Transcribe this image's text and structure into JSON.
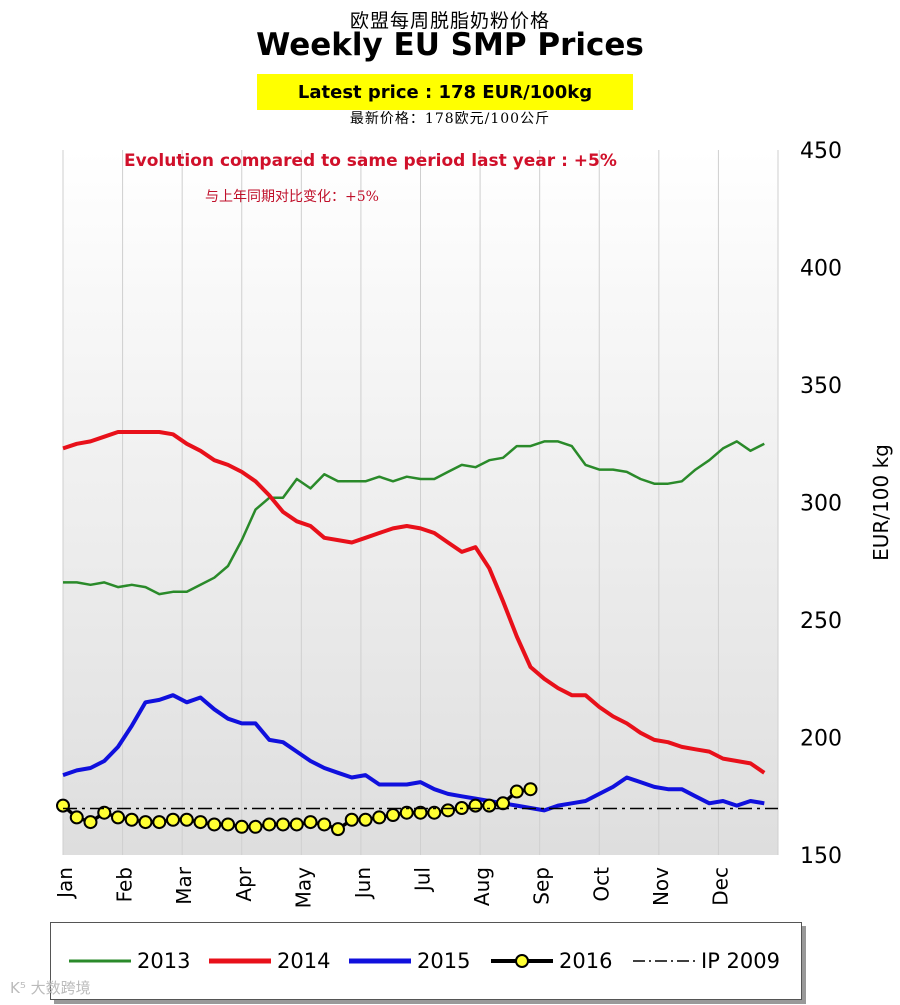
{
  "header": {
    "title_cn": "欧盟每周脱脂奶粉价格",
    "title_en": "Weekly EU SMP Prices",
    "latest_price_en": "Latest price :  178 EUR/100kg",
    "latest_price_cn": "最新价格：178欧元/100公斤",
    "evolution_en": "Evolution compared to same period last year : +5%",
    "evolution_cn": "与上年同期对比变化：+5%"
  },
  "watermark": "K⁵ 大数跨境",
  "colors": {
    "s2013": "#2a8a2a",
    "s2014": "#e8101a",
    "s2015": "#1010dd",
    "s2016_fill": "#ffff33",
    "s2016_line": "#000000",
    "ip2009": "#000000",
    "grid": "#cfcfcf",
    "plot_top": "#ffffff",
    "plot_bottom": "#dedede"
  },
  "chart_data": {
    "type": "line",
    "ylabel": "EUR/100 kg",
    "ylim": [
      150,
      450
    ],
    "yticks": [
      150,
      200,
      250,
      300,
      350,
      400,
      450
    ],
    "y_axis_side": "right",
    "xlim": [
      0,
      52
    ],
    "months": [
      "Jan",
      "Feb",
      "Mar",
      "Apr",
      "May",
      "Jun",
      "Jul",
      "Aug",
      "Sep",
      "Oct",
      "Nov",
      "Dec"
    ],
    "x_unit": "week",
    "grid": "vertical month lines",
    "legend_position": "bottom",
    "series": [
      {
        "name": "2013",
        "key": "s2013",
        "x": [
          0,
          1,
          2,
          3,
          4,
          5,
          6,
          7,
          8,
          9,
          10,
          11,
          12,
          13,
          14,
          15,
          16,
          17,
          18,
          19,
          20,
          21,
          22,
          23,
          24,
          25,
          26,
          27,
          28,
          29,
          30,
          31,
          32,
          33,
          34,
          35,
          36,
          37,
          38,
          39,
          40,
          41,
          42,
          43,
          44,
          45,
          46,
          47,
          48,
          49,
          50,
          51
        ],
        "values": [
          266,
          266,
          265,
          266,
          264,
          265,
          264,
          261,
          262,
          262,
          265,
          268,
          273,
          284,
          297,
          302,
          302,
          310,
          306,
          312,
          309,
          309,
          309,
          311,
          309,
          311,
          310,
          310,
          313,
          316,
          315,
          318,
          319,
          324,
          324,
          326,
          326,
          324,
          316,
          314,
          314,
          313,
          310,
          308,
          308,
          309,
          314,
          318,
          323,
          326,
          322,
          325
        ]
      },
      {
        "name": "2014",
        "key": "s2014",
        "x": [
          0,
          1,
          2,
          3,
          4,
          5,
          6,
          7,
          8,
          9,
          10,
          11,
          12,
          13,
          14,
          15,
          16,
          17,
          18,
          19,
          20,
          21,
          22,
          23,
          24,
          25,
          26,
          27,
          28,
          29,
          30,
          31,
          32,
          33,
          34,
          35,
          36,
          37,
          38,
          39,
          40,
          41,
          42,
          43,
          44,
          45,
          46,
          47,
          48,
          49,
          50,
          51
        ],
        "values": [
          323,
          325,
          326,
          328,
          330,
          330,
          330,
          330,
          329,
          325,
          322,
          318,
          316,
          313,
          309,
          303,
          296,
          292,
          290,
          285,
          284,
          283,
          285,
          287,
          289,
          290,
          289,
          287,
          283,
          279,
          281,
          272,
          258,
          243,
          230,
          225,
          221,
          218,
          218,
          213,
          209,
          206,
          202,
          199,
          198,
          196,
          195,
          194,
          191,
          190,
          189,
          185
        ]
      },
      {
        "name": "2015",
        "key": "s2015",
        "x": [
          0,
          1,
          2,
          3,
          4,
          5,
          6,
          7,
          8,
          9,
          10,
          11,
          12,
          13,
          14,
          15,
          16,
          17,
          18,
          19,
          20,
          21,
          22,
          23,
          24,
          25,
          26,
          27,
          28,
          29,
          30,
          31,
          32,
          33,
          34,
          35,
          36,
          37,
          38,
          39,
          40,
          41,
          42,
          43,
          44,
          45,
          46,
          47,
          48,
          49,
          50,
          51
        ],
        "values": [
          184,
          186,
          187,
          190,
          196,
          205,
          215,
          216,
          218,
          215,
          217,
          212,
          208,
          206,
          206,
          199,
          198,
          194,
          190,
          187,
          185,
          183,
          184,
          180,
          180,
          180,
          181,
          178,
          176,
          175,
          174,
          173,
          172,
          171,
          170,
          169,
          171,
          172,
          173,
          176,
          179,
          183,
          181,
          179,
          178,
          178,
          175,
          172,
          173,
          171,
          173,
          172
        ]
      },
      {
        "name": "2016",
        "key": "s2016",
        "x": [
          0,
          1,
          2,
          3,
          4,
          5,
          6,
          7,
          8,
          9,
          10,
          11,
          12,
          13,
          14,
          15,
          16,
          17,
          18,
          19,
          20,
          21,
          22,
          23,
          24,
          25,
          26,
          27,
          28,
          29,
          30,
          31,
          32,
          33,
          34
        ],
        "values": [
          171,
          166,
          164,
          168,
          166,
          165,
          164,
          164,
          165,
          165,
          164,
          163,
          163,
          162,
          162,
          163,
          163,
          163,
          164,
          163,
          161,
          165,
          165,
          166,
          167,
          168,
          168,
          168,
          169,
          170,
          171,
          171,
          172,
          177,
          178
        ]
      },
      {
        "name": "IP 2009",
        "key": "ip2009",
        "x": [
          0,
          52
        ],
        "values": [
          169.8,
          169.8
        ]
      }
    ]
  }
}
